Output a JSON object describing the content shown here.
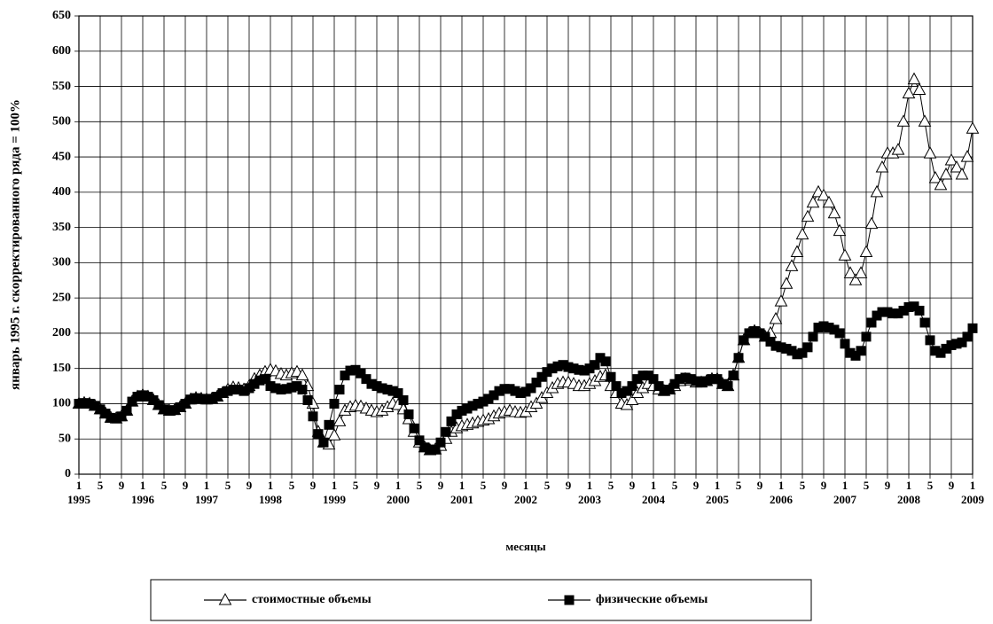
{
  "chart_data": {
    "type": "line",
    "y_label": "январь 1995 г. скорректированного ряда = 100%",
    "x_label": "месяцы",
    "categories": [
      "1",
      null,
      null,
      null,
      "5",
      null,
      null,
      null,
      "9",
      null,
      null,
      null,
      "1",
      null,
      null,
      null,
      "5",
      null,
      null,
      null,
      "9",
      null,
      null,
      null,
      "1",
      null,
      null,
      null,
      "5",
      null,
      null,
      null,
      "9",
      null,
      null,
      null,
      "1",
      null,
      null,
      null,
      "5",
      null,
      null,
      null,
      "9",
      null,
      null,
      null,
      "1",
      null,
      null,
      null,
      "5",
      null,
      null,
      null,
      "9",
      null,
      null,
      null,
      "1",
      null,
      null,
      null,
      "5",
      null,
      null,
      null,
      "9",
      null,
      null,
      null,
      "1",
      null,
      null,
      null,
      "5",
      null,
      null,
      null,
      "9",
      null,
      null,
      null,
      "1",
      null,
      null,
      null,
      "5",
      null,
      null,
      null,
      "9",
      null,
      null,
      null,
      "1",
      null,
      null,
      null,
      "5",
      null,
      null,
      null,
      "9",
      null,
      null,
      null,
      "1",
      null,
      null,
      null,
      "5",
      null,
      null,
      null,
      "9",
      null,
      null,
      null,
      "1",
      null,
      null,
      null,
      "5",
      null,
      null,
      null,
      "9",
      null,
      null,
      null,
      "1",
      null,
      null,
      null,
      "5",
      null,
      null,
      null,
      "9",
      null,
      null,
      null,
      "1",
      null,
      null,
      null,
      "5",
      null,
      null,
      null,
      "9",
      null,
      null,
      null,
      "1",
      null,
      null,
      null,
      "5",
      null,
      null,
      null,
      "9",
      null,
      null,
      null,
      "1"
    ],
    "years": [
      "1995",
      "1996",
      "1997",
      "1998",
      "1999",
      "2000",
      "2001",
      "2002",
      "2003",
      "2004",
      "2005",
      "2006",
      "2007",
      "2008",
      "2009"
    ],
    "series": [
      {
        "name": "стоимостные объемы",
        "color": "#000000",
        "marker": "triangle",
        "values": [
          100,
          101,
          100,
          97,
          92,
          86,
          80,
          79,
          82,
          90,
          103,
          110,
          112,
          110,
          105,
          98,
          92,
          90,
          91,
          95,
          100,
          106,
          108,
          107,
          106,
          107,
          110,
          115,
          120,
          123,
          122,
          120,
          125,
          135,
          140,
          145,
          148,
          146,
          142,
          140,
          143,
          145,
          140,
          125,
          100,
          60,
          45,
          42,
          55,
          75,
          90,
          95,
          97,
          96,
          93,
          90,
          88,
          90,
          95,
          100,
          98,
          92,
          78,
          60,
          45,
          38,
          34,
          35,
          40,
          50,
          60,
          65,
          68,
          70,
          72,
          74,
          76,
          78,
          82,
          86,
          88,
          90,
          88,
          87,
          88,
          95,
          100,
          108,
          115,
          122,
          128,
          130,
          130,
          128,
          125,
          125,
          128,
          132,
          138,
          140,
          125,
          115,
          100,
          98,
          105,
          115,
          122,
          128,
          125,
          120,
          118,
          120,
          125,
          132,
          135,
          133,
          130,
          130,
          132,
          135,
          135,
          128,
          125,
          140,
          165,
          190,
          200,
          203,
          200,
          195,
          200,
          220,
          245,
          270,
          295,
          315,
          340,
          365,
          385,
          400,
          395,
          385,
          370,
          345,
          310,
          285,
          275,
          285,
          315,
          355,
          400,
          435,
          455,
          455,
          460,
          500,
          540,
          560,
          545,
          500,
          455,
          420,
          410,
          425,
          445,
          435,
          425,
          450,
          490
        ]
      },
      {
        "name": "физические объемы",
        "color": "#000000",
        "marker": "square",
        "values": [
          100,
          101,
          100,
          97,
          92,
          86,
          80,
          79,
          82,
          90,
          103,
          110,
          112,
          110,
          105,
          98,
          92,
          90,
          91,
          95,
          100,
          106,
          108,
          107,
          106,
          107,
          110,
          115,
          118,
          120,
          120,
          118,
          122,
          128,
          133,
          135,
          125,
          122,
          120,
          121,
          123,
          125,
          120,
          105,
          82,
          57,
          45,
          70,
          100,
          120,
          140,
          147,
          148,
          143,
          135,
          128,
          125,
          122,
          120,
          118,
          115,
          105,
          85,
          65,
          48,
          38,
          35,
          35,
          45,
          60,
          75,
          85,
          90,
          93,
          97,
          100,
          103,
          107,
          112,
          118,
          121,
          121,
          118,
          115,
          117,
          122,
          130,
          138,
          145,
          150,
          153,
          155,
          152,
          150,
          148,
          147,
          150,
          155,
          165,
          160,
          138,
          125,
          115,
          118,
          125,
          135,
          140,
          140,
          135,
          125,
          118,
          120,
          128,
          135,
          137,
          135,
          132,
          130,
          132,
          135,
          135,
          128,
          125,
          140,
          165,
          190,
          200,
          203,
          200,
          195,
          188,
          182,
          180,
          178,
          175,
          170,
          172,
          180,
          195,
          208,
          210,
          208,
          205,
          200,
          185,
          172,
          168,
          175,
          195,
          215,
          225,
          230,
          230,
          228,
          228,
          232,
          237,
          238,
          232,
          215,
          190,
          175,
          172,
          178,
          183,
          185,
          187,
          195,
          207
        ]
      }
    ],
    "ylim": [
      0,
      650
    ],
    "yticks": [
      0,
      50,
      100,
      150,
      200,
      250,
      300,
      350,
      400,
      450,
      500,
      550,
      600,
      650
    ],
    "grid": true,
    "legend": "bottom"
  }
}
